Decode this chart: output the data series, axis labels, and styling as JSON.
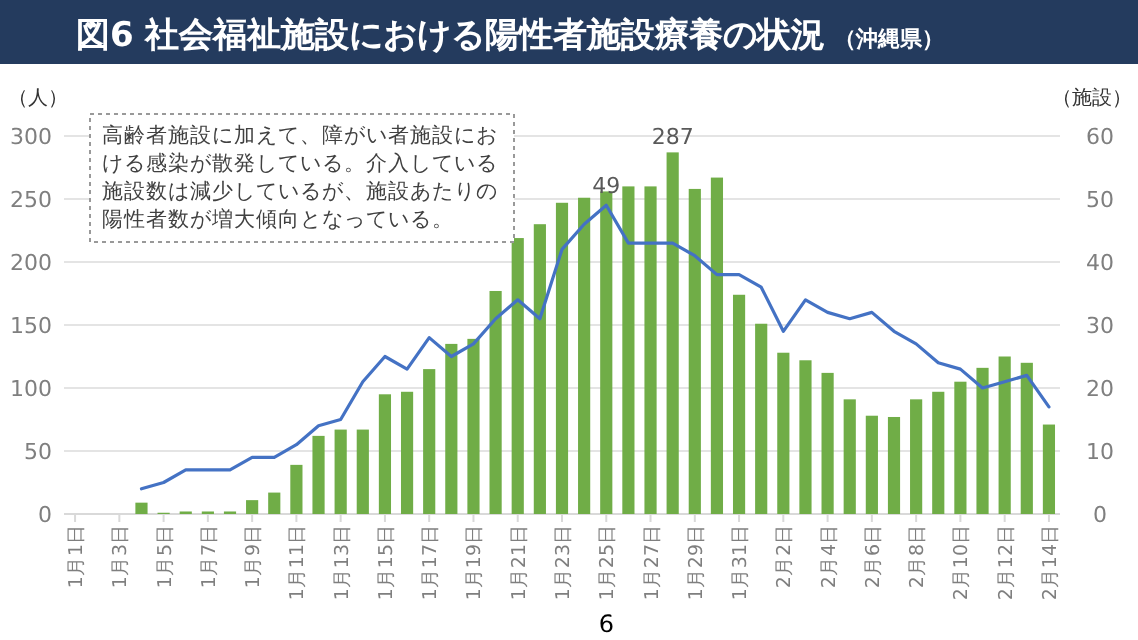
{
  "chart_data": {
    "type": "bar",
    "title": "図6 社会福祉施設における陽性者施設療養の状況",
    "subtitle": "（沖縄県）",
    "ylabel": "（人）",
    "y2label": "（施設）",
    "annotations": [
      "高齢者施設に加えて、障がい者施設における感染が散発している。介入している施設数は減少しているが、施設あたりの陽性者数が増大傾向となっている。",
      "6"
    ],
    "categories": [
      "1月1日",
      null,
      "1月3日",
      null,
      "1月5日",
      null,
      "1月7日",
      null,
      "1月9日",
      null,
      "1月11日",
      null,
      "1月13日",
      null,
      "1月15日",
      null,
      "1月17日",
      null,
      "1月19日",
      null,
      "1月21日",
      null,
      "1月23日",
      null,
      "1月25日",
      null,
      "1月27日",
      null,
      "1月29日",
      null,
      "1月31日",
      null,
      "2月2日",
      null,
      "2月4日",
      null,
      "2月6日",
      null,
      "2月8日",
      null,
      "2月10日",
      null,
      "2月12日",
      null,
      "2月14日"
    ],
    "series": [
      {
        "color": "#70ad47",
        "values": [
          null,
          null,
          null,
          9,
          1,
          2,
          2,
          2,
          11,
          17,
          39,
          62,
          67,
          67,
          95,
          97,
          115,
          135,
          139,
          177,
          219,
          230,
          247,
          251,
          256,
          260,
          260,
          287,
          258,
          267,
          174,
          151,
          128,
          122,
          112,
          91,
          78,
          77,
          91,
          97,
          105,
          116,
          125,
          120,
          71
        ],
        "value_labels": [
          null,
          null,
          null,
          null,
          null,
          null,
          null,
          null,
          null,
          null,
          null,
          null,
          null,
          null,
          null,
          null,
          null,
          null,
          null,
          null,
          null,
          null,
          null,
          null,
          null,
          null,
          null,
          "287",
          null,
          null,
          null,
          null,
          null,
          null,
          null,
          null,
          null,
          null,
          null,
          null,
          null,
          null,
          null,
          null,
          null
        ]
      },
      {
        "type": "line",
        "axis": "y2",
        "color": "#4472c4",
        "values": [
          null,
          null,
          null,
          4,
          5,
          7,
          7,
          7,
          9,
          9,
          11,
          14,
          15,
          21,
          25,
          23,
          28,
          25,
          27,
          31,
          34,
          31,
          42,
          46,
          49,
          43,
          43,
          43,
          41,
          38,
          38,
          36,
          29,
          34,
          32,
          31,
          32,
          29,
          27,
          24,
          23,
          20,
          21,
          22,
          17
        ],
        "value_labels": [
          null,
          null,
          null,
          null,
          null,
          null,
          null,
          null,
          null,
          null,
          null,
          null,
          null,
          null,
          null,
          null,
          null,
          null,
          null,
          null,
          null,
          null,
          null,
          null,
          "49",
          null,
          null,
          null,
          null,
          null,
          null,
          null,
          null,
          null,
          null,
          null,
          null,
          null,
          null,
          null,
          null,
          null,
          null,
          null,
          null
        ]
      }
    ],
    "ylim": [
      0,
      300
    ],
    "yticks": [
      0,
      50,
      100,
      150,
      200,
      250,
      300
    ],
    "y2lim": [
      0,
      60
    ],
    "y2ticks": [
      0,
      10,
      20,
      30,
      40,
      50,
      60
    ],
    "grid": "y",
    "marker": "none",
    "line_style": "solid"
  }
}
